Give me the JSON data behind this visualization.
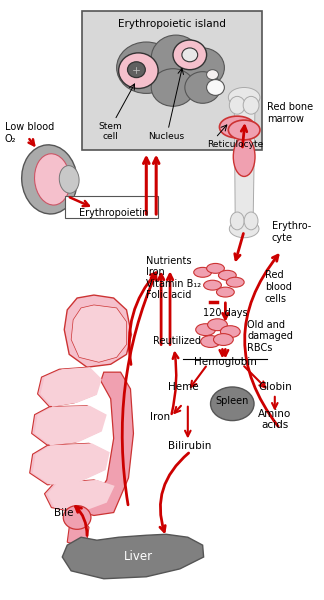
{
  "bg_color": "#ffffff",
  "pink": "#f0a0b0",
  "pink_light": "#f5c0cc",
  "gray_dark": "#808080",
  "gray_med": "#999999",
  "gray_light": "#c0c0c0",
  "gray_box": "#d8d8d8",
  "red": "#cc0000",
  "black": "#000000",
  "white": "#ffffff",
  "bone_color": "#e8e8e8",
  "labels": {
    "erythropoietic_island": "Erythropoietic island",
    "red_bone_marrow": "Red bone\nmarrow",
    "stem_cell": "Stem\ncell",
    "nucleus": "Nucleus",
    "reticulocyte": "Reticulocyte",
    "low_blood_o2": "Low blood\nO₂",
    "erythropoietin": "Erythropoietin",
    "nutrients": "Nutrients\nIron\nVitamin B₁₂\nFolic acid",
    "erythrocyte": "Erythro-\ncyte",
    "red_blood_cells": "Red\nblood\ncells",
    "120_days": "120 days",
    "old_damaged": "Old and\ndamaged\nRBCs",
    "hemoglobin": "Hemoglobin",
    "heme": "Heme",
    "spleen": "Spleen",
    "globin": "Globin",
    "iron": "Iron",
    "bilirubin": "Bilirubin",
    "amino_acids": "Amino\nacids",
    "reutilized": "Reutilized",
    "bile": "Bile",
    "liver": "Liver"
  }
}
